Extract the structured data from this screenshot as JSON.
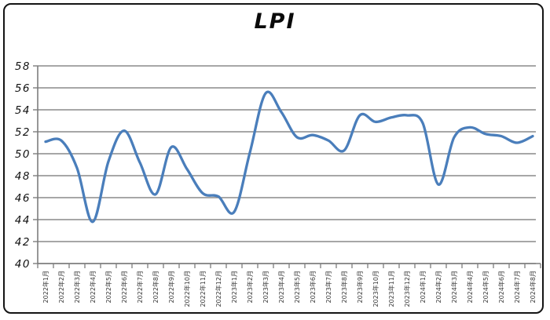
{
  "window": {
    "background": "#ffffff",
    "frame_border_color": "#141414"
  },
  "chart_data": {
    "type": "line",
    "title": "LPI",
    "smooth": true,
    "legend": "none",
    "grid": "horizontal",
    "ylim": [
      40,
      58
    ],
    "ytick_step": 2,
    "yticks": [
      58,
      56,
      54,
      52,
      50,
      48,
      46,
      44,
      42,
      40
    ],
    "x_label_rotation_deg": 90,
    "line_color": "#4a7ebb",
    "gridline_color": "#8a8a8a",
    "axis_color": "#7d7d7d",
    "categories": [
      "2022年1月",
      "2022年2月",
      "2022年3月",
      "2022年4月",
      "2022年5月",
      "2022年6月",
      "2022年7月",
      "2022年8月",
      "2022年9月",
      "2022年10月",
      "2022年11月",
      "2022年12月",
      "2023年1月",
      "2023年2月",
      "2023年3月",
      "2023年4月",
      "2023年5月",
      "2023年6月",
      "2023年7月",
      "2023年8月",
      "2023年9月",
      "2023年10月",
      "2023年11月",
      "2023年12月",
      "2024年1月",
      "2024年2月",
      "2024年3月",
      "2024年4月",
      "2024年5月",
      "2024年6月",
      "2024年7月",
      "2024年8月"
    ],
    "values": [
      51.1,
      51.2,
      48.7,
      43.8,
      49.3,
      52.1,
      49.2,
      46.3,
      50.6,
      48.6,
      46.4,
      46.1,
      44.7,
      50.1,
      55.5,
      53.8,
      51.5,
      51.7,
      51.2,
      50.3,
      53.5,
      52.9,
      53.3,
      53.5,
      52.8,
      47.2,
      51.5,
      52.4,
      51.8,
      51.6,
      51.0,
      51.6
    ]
  }
}
